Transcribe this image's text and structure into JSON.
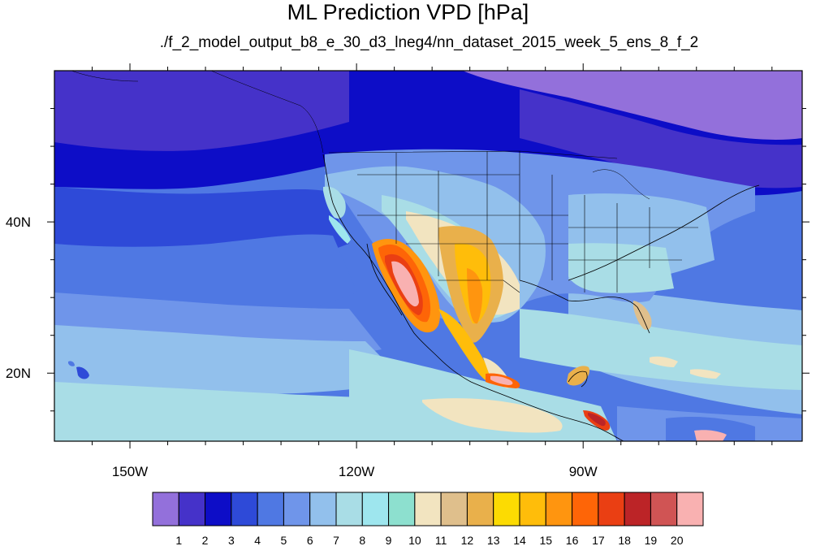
{
  "title": "ML Prediction VPD [hPa]",
  "subtitle": "./f_2_model_output_b8_e_30_d3_lneg4/nn_dataset_2015_week_5_ens_8_f_2",
  "axes": {
    "x_ticks": [
      {
        "value": -150,
        "label": "150W"
      },
      {
        "value": -120,
        "label": "120W"
      },
      {
        "value": -90,
        "label": "90W"
      }
    ],
    "y_ticks": [
      {
        "value": 40,
        "label": "40N"
      },
      {
        "value": 20,
        "label": "20N"
      }
    ],
    "lon_range": [
      -160,
      -61
    ],
    "lat_range": [
      11,
      60
    ]
  },
  "colorbar": {
    "levels": [
      "1",
      "2",
      "3",
      "4",
      "5",
      "6",
      "7",
      "8",
      "9",
      "10",
      "11",
      "12",
      "13",
      "14",
      "15",
      "16",
      "17",
      "18",
      "19",
      "20"
    ],
    "colors": [
      "#9370db",
      "#4532c9",
      "#0d0dc7",
      "#2e4ad8",
      "#4f78e3",
      "#6f95ea",
      "#92c0ec",
      "#a9dde6",
      "#9ee6ee",
      "#8de0cf",
      "#f2e4c0",
      "#dfbf8c",
      "#e9b04b",
      "#fcdb02",
      "#ffbd0a",
      "#ff950f",
      "#fe6507",
      "#ea3f13",
      "#bc2427",
      "#d05454",
      "#f9b1b1"
    ]
  },
  "icons": [
    "map-canvas",
    "colorbar"
  ]
}
